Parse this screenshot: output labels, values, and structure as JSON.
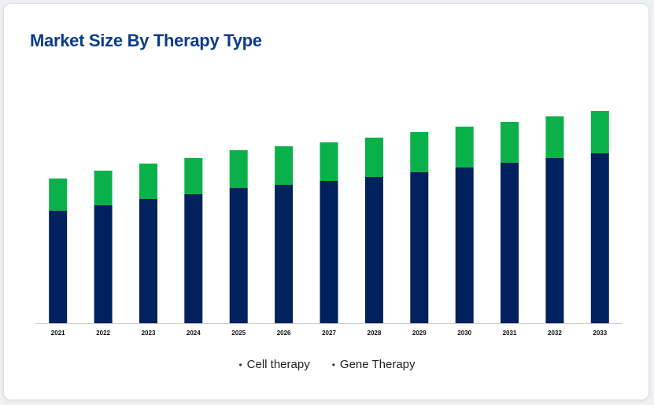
{
  "card": {
    "title": "Market Size By Therapy Type"
  },
  "colors": {
    "title": "#0a3b8c",
    "cell": "#00205e",
    "gene": "#0ab14b",
    "axis": "#cccccc",
    "tick_text": "#111111"
  },
  "chart_data": {
    "type": "bar",
    "stacked": true,
    "categories": [
      "2021",
      "2022",
      "2023",
      "2024",
      "2025",
      "2026",
      "2027",
      "2028",
      "2029",
      "2030",
      "2031",
      "2032",
      "2033"
    ],
    "series": [
      {
        "name": "Cell therapy",
        "values": [
          143,
          150,
          158,
          164,
          172,
          176,
          181,
          186,
          192,
          198,
          204,
          210,
          216
        ]
      },
      {
        "name": "Gene Therapy",
        "values": [
          41,
          44,
          45,
          46,
          48,
          49,
          49,
          50,
          51,
          52,
          52,
          53,
          54
        ]
      }
    ],
    "ylim": [
      0,
      300
    ],
    "grid": false,
    "legend": "bottom-center",
    "xlabel": "",
    "ylabel": ""
  },
  "legend_items": [
    {
      "label": "Cell therapy",
      "bullet": "•"
    },
    {
      "label": "Gene Therapy",
      "bullet": "•"
    }
  ]
}
